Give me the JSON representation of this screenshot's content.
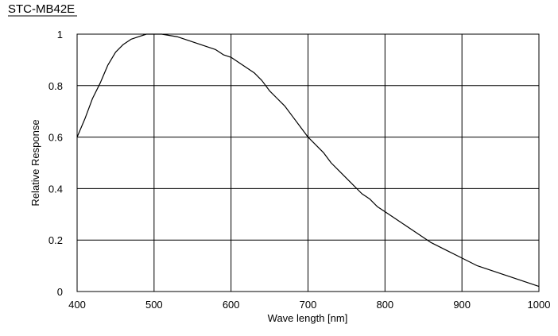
{
  "chart_data": {
    "type": "line",
    "title": "STC-MB42E",
    "xlabel": "Wave length [nm]",
    "ylabel": "Relative Response",
    "xlim": [
      400,
      1000
    ],
    "ylim": [
      0,
      1
    ],
    "xticks": [
      400,
      500,
      600,
      700,
      800,
      900,
      1000
    ],
    "yticks": [
      0,
      0.2,
      0.4,
      0.6,
      0.8,
      1
    ],
    "ytick_labels": [
      "0",
      "0.2",
      "0.4",
      "0.6",
      "0.8",
      "1"
    ],
    "grid": true,
    "legend": "none",
    "line_color": "#000000",
    "series": [
      {
        "x": [
          400,
          410,
          420,
          430,
          440,
          450,
          460,
          470,
          480,
          490,
          500,
          510,
          520,
          530,
          540,
          550,
          560,
          570,
          580,
          590,
          600,
          610,
          620,
          630,
          640,
          650,
          660,
          670,
          680,
          690,
          700,
          710,
          720,
          730,
          740,
          750,
          760,
          770,
          780,
          790,
          800,
          820,
          840,
          860,
          880,
          900,
          920,
          940,
          960,
          980,
          1000
        ],
        "y": [
          0.6,
          0.67,
          0.75,
          0.81,
          0.88,
          0.93,
          0.96,
          0.98,
          0.99,
          1.0,
          1.0,
          1.0,
          0.995,
          0.99,
          0.98,
          0.97,
          0.96,
          0.95,
          0.94,
          0.92,
          0.91,
          0.89,
          0.87,
          0.85,
          0.82,
          0.78,
          0.75,
          0.72,
          0.68,
          0.64,
          0.6,
          0.57,
          0.54,
          0.5,
          0.47,
          0.44,
          0.41,
          0.38,
          0.36,
          0.33,
          0.31,
          0.27,
          0.23,
          0.19,
          0.16,
          0.13,
          0.1,
          0.08,
          0.06,
          0.04,
          0.02
        ]
      }
    ]
  }
}
